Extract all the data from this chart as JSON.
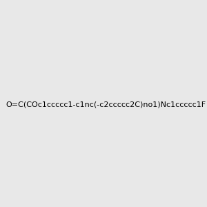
{
  "smiles": "O=C(COc1ccccc1-c1nc(-c2ccccc2C)no1)Nc1ccccc1F",
  "image_size": 300,
  "background_color": "#e8e8e8",
  "bond_color": "#000000",
  "atom_colors": {
    "F": "#cc00cc",
    "N": "#0000ff",
    "O": "#ff0000",
    "H": "#008080"
  },
  "title": ""
}
